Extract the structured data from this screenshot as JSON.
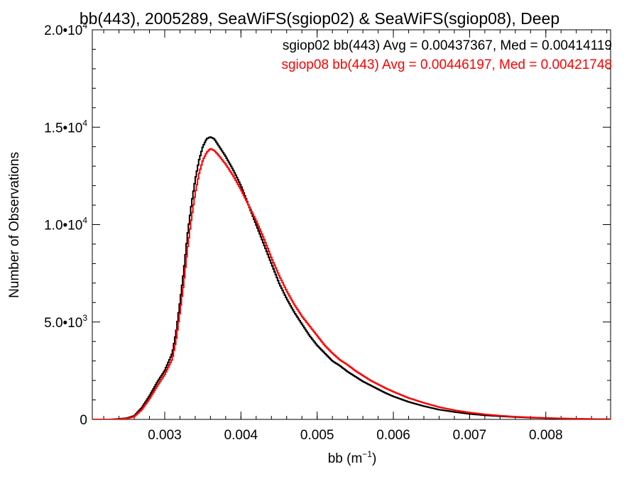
{
  "chart_data": {
    "type": "line",
    "title": "bb(443), 2005289, SeaWiFS(sgiop02) & SeaWiFS(sgiop08), Deep",
    "xlabel": "bb (m",
    "xlabel_sup": "−1",
    "xlabel_end": ")",
    "ylabel": "Number of Observations",
    "xlim": [
      0.00205,
      0.00885
    ],
    "ylim": [
      0,
      20000
    ],
    "xticks": [
      {
        "value": 0.003,
        "label": "0.003"
      },
      {
        "value": 0.004,
        "label": "0.004"
      },
      {
        "value": 0.005,
        "label": "0.005"
      },
      {
        "value": 0.006,
        "label": "0.006"
      },
      {
        "value": 0.007,
        "label": "0.007"
      },
      {
        "value": 0.008,
        "label": "0.008"
      }
    ],
    "yticks": [
      {
        "value": 0,
        "mantissa": "0",
        "exp": ""
      },
      {
        "value": 5000,
        "mantissa": "5.0•10",
        "exp": "3"
      },
      {
        "value": 10000,
        "mantissa": "1.0•10",
        "exp": "4"
      },
      {
        "value": 15000,
        "mantissa": "1.5•10",
        "exp": "4"
      },
      {
        "value": 20000,
        "mantissa": "2.0•10",
        "exp": "4"
      }
    ],
    "grid": false,
    "legend_placement": "top-right",
    "series": [
      {
        "name": "sgiop02 bb(443) Avg = 0.00437367, Med = 0.00414119",
        "color": "#000000",
        "points": [
          [
            0.0021,
            0
          ],
          [
            0.0023,
            0
          ],
          [
            0.0025,
            60
          ],
          [
            0.0026,
            180
          ],
          [
            0.0027,
            600
          ],
          [
            0.0028,
            1200
          ],
          [
            0.0029,
            1900
          ],
          [
            0.003,
            2500
          ],
          [
            0.0031,
            3400
          ],
          [
            0.00315,
            4500
          ],
          [
            0.0032,
            6000
          ],
          [
            0.00325,
            7600
          ],
          [
            0.0033,
            9500
          ],
          [
            0.00335,
            11000
          ],
          [
            0.0034,
            12300
          ],
          [
            0.00345,
            13300
          ],
          [
            0.0035,
            14000
          ],
          [
            0.00355,
            14400
          ],
          [
            0.0036,
            14500
          ],
          [
            0.00365,
            14400
          ],
          [
            0.0037,
            14100
          ],
          [
            0.0038,
            13500
          ],
          [
            0.0039,
            12800
          ],
          [
            0.004,
            12000
          ],
          [
            0.0041,
            11000
          ],
          [
            0.0042,
            10000
          ],
          [
            0.0043,
            9000
          ],
          [
            0.0044,
            8000
          ],
          [
            0.0045,
            7000
          ],
          [
            0.0046,
            6200
          ],
          [
            0.0047,
            5500
          ],
          [
            0.0048,
            4900
          ],
          [
            0.0049,
            4300
          ],
          [
            0.005,
            3800
          ],
          [
            0.0051,
            3400
          ],
          [
            0.0052,
            3000
          ],
          [
            0.0053,
            2750
          ],
          [
            0.0054,
            2450
          ],
          [
            0.0055,
            2200
          ],
          [
            0.0056,
            1950
          ],
          [
            0.0057,
            1750
          ],
          [
            0.0058,
            1550
          ],
          [
            0.0059,
            1350
          ],
          [
            0.006,
            1180
          ],
          [
            0.0062,
            900
          ],
          [
            0.0064,
            680
          ],
          [
            0.0066,
            500
          ],
          [
            0.0068,
            380
          ],
          [
            0.007,
            280
          ],
          [
            0.0072,
            210
          ],
          [
            0.0074,
            160
          ],
          [
            0.0076,
            120
          ],
          [
            0.0078,
            90
          ],
          [
            0.008,
            65
          ],
          [
            0.0082,
            45
          ],
          [
            0.0084,
            30
          ],
          [
            0.0086,
            20
          ],
          [
            0.00885,
            10
          ]
        ]
      },
      {
        "name": "sgiop08 bb(443) Avg = 0.00446197, Med = 0.00421748",
        "color": "#ff0000",
        "points": [
          [
            0.0021,
            0
          ],
          [
            0.0023,
            0
          ],
          [
            0.0025,
            40
          ],
          [
            0.0026,
            140
          ],
          [
            0.0027,
            500
          ],
          [
            0.0028,
            1050
          ],
          [
            0.0029,
            1700
          ],
          [
            0.003,
            2300
          ],
          [
            0.0031,
            3100
          ],
          [
            0.00315,
            4100
          ],
          [
            0.0032,
            5500
          ],
          [
            0.00325,
            7000
          ],
          [
            0.0033,
            8800
          ],
          [
            0.00335,
            10300
          ],
          [
            0.0034,
            11600
          ],
          [
            0.00345,
            12600
          ],
          [
            0.0035,
            13300
          ],
          [
            0.00355,
            13700
          ],
          [
            0.0036,
            13900
          ],
          [
            0.00365,
            13800
          ],
          [
            0.0037,
            13600
          ],
          [
            0.0038,
            13100
          ],
          [
            0.0039,
            12500
          ],
          [
            0.004,
            11800
          ],
          [
            0.0041,
            11000
          ],
          [
            0.0042,
            10200
          ],
          [
            0.0043,
            9300
          ],
          [
            0.0044,
            8300
          ],
          [
            0.0045,
            7400
          ],
          [
            0.0046,
            6600
          ],
          [
            0.0047,
            5900
          ],
          [
            0.0048,
            5300
          ],
          [
            0.0049,
            4800
          ],
          [
            0.005,
            4300
          ],
          [
            0.0051,
            3800
          ],
          [
            0.0052,
            3400
          ],
          [
            0.0053,
            3050
          ],
          [
            0.0054,
            2800
          ],
          [
            0.0055,
            2500
          ],
          [
            0.0056,
            2250
          ],
          [
            0.0057,
            2000
          ],
          [
            0.0058,
            1800
          ],
          [
            0.0059,
            1600
          ],
          [
            0.006,
            1420
          ],
          [
            0.0062,
            1100
          ],
          [
            0.0064,
            850
          ],
          [
            0.0066,
            630
          ],
          [
            0.0068,
            470
          ],
          [
            0.007,
            350
          ],
          [
            0.0072,
            260
          ],
          [
            0.0074,
            190
          ],
          [
            0.0076,
            140
          ],
          [
            0.0078,
            105
          ],
          [
            0.008,
            75
          ],
          [
            0.0082,
            52
          ],
          [
            0.0084,
            35
          ],
          [
            0.0086,
            22
          ],
          [
            0.00885,
            12
          ]
        ]
      }
    ]
  }
}
